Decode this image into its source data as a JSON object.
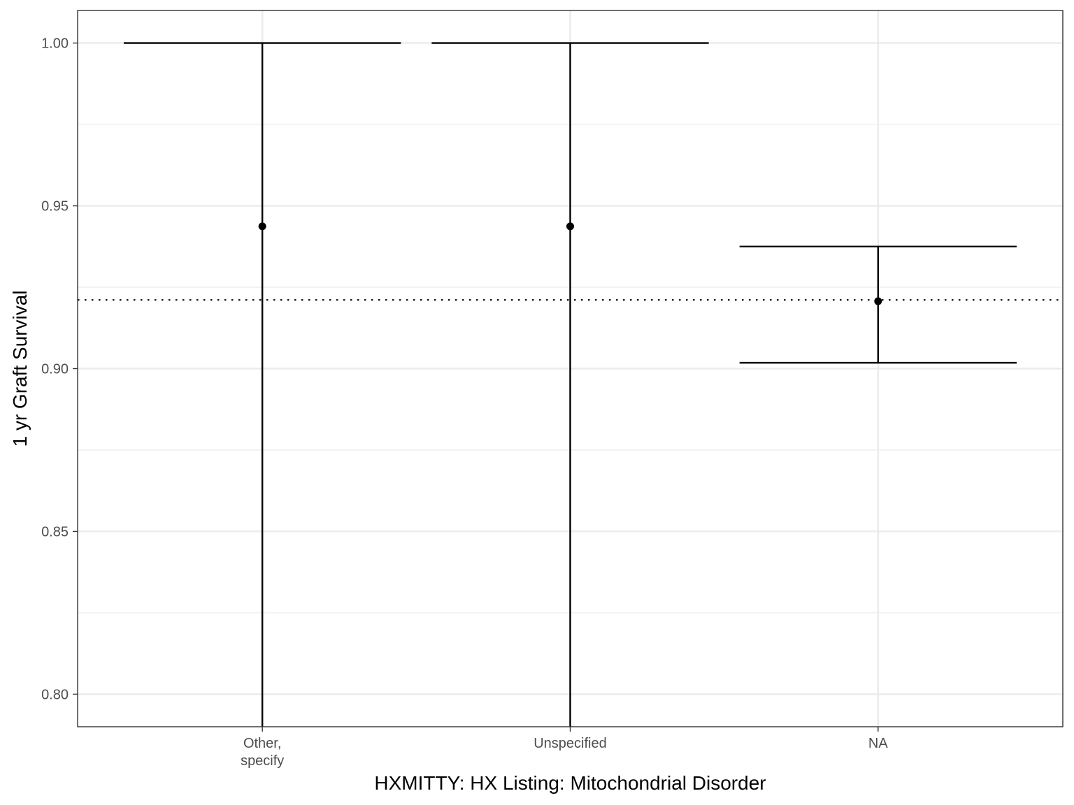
{
  "chart_data": {
    "type": "errorbar",
    "categories": [
      "Other,\nspecify",
      "Unspecified",
      "NA"
    ],
    "series": [
      {
        "values": [
          0.9437,
          0.9437,
          0.9207
        ],
        "lower": [
          0.79,
          0.79,
          0.9018
        ],
        "upper": [
          1.0,
          1.0,
          0.9375
        ]
      }
    ],
    "reference_line": {
      "value": 0.9211,
      "style": "dotted"
    },
    "xlabel": "HXMITTY: HX Listing: Mitochondrial Disorder",
    "ylabel": "1 yr Graft Survival",
    "ylim": [
      0.79,
      1.01
    ],
    "yticks": [
      0.8,
      0.85,
      0.9,
      0.95,
      1.0
    ],
    "ytick_labels": [
      "0.80",
      "0.85",
      "0.90",
      "0.95",
      "1.00"
    ],
    "grid": true,
    "colors": {
      "mark": "#000000",
      "grid": "#ebebeb",
      "panel_border": "#333333",
      "tick_text": "#4d4d4d"
    }
  }
}
